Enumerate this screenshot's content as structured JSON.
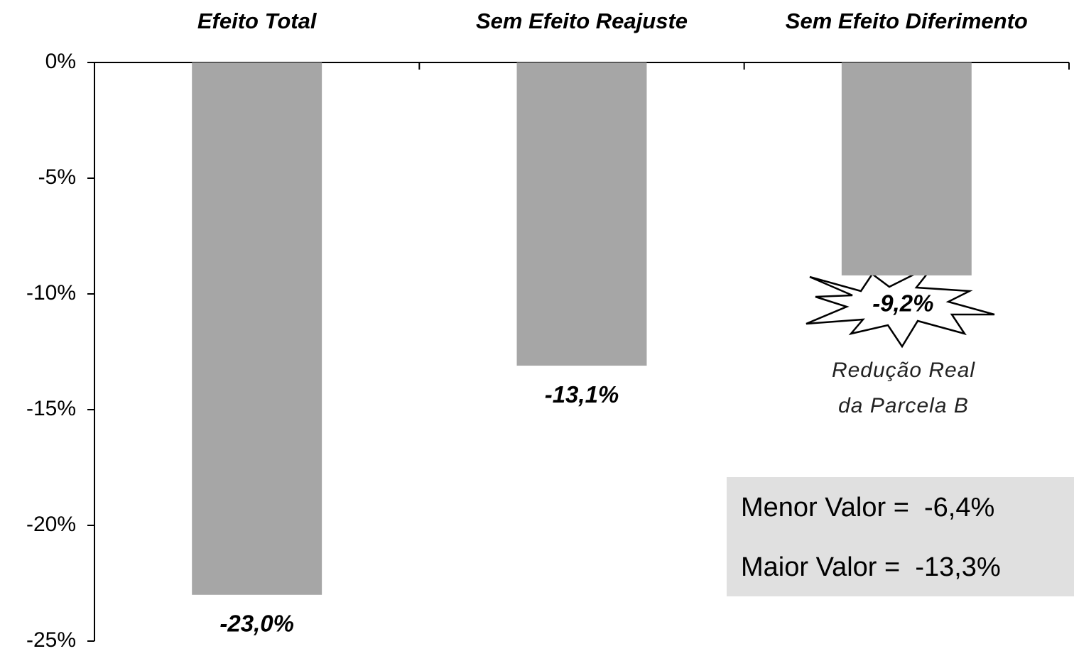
{
  "chart_data": {
    "type": "bar",
    "categories": [
      "Efeito Total",
      "Sem Efeito Reajuste",
      "Sem Efeito Diferimento"
    ],
    "values": [
      -23.0,
      -13.1,
      -9.2
    ],
    "value_labels": [
      "-23,0%",
      "-13,1%",
      "-9,2%"
    ],
    "color": "#a6a6a6",
    "ylim": [
      -25,
      0
    ],
    "yticks": [
      {
        "value": 0,
        "label": "0%"
      },
      {
        "value": -5,
        "label": "-5%"
      },
      {
        "value": -10,
        "label": "-10%"
      },
      {
        "value": -15,
        "label": "-15%"
      },
      {
        "value": -20,
        "label": "-20%"
      },
      {
        "value": -25,
        "label": "-25%"
      }
    ],
    "annotations": [
      "Redução Real",
      "da Parcela B"
    ],
    "summary_box": [
      "Menor Valor =  -6,4%",
      "Maior Valor =  -13,3%"
    ]
  }
}
